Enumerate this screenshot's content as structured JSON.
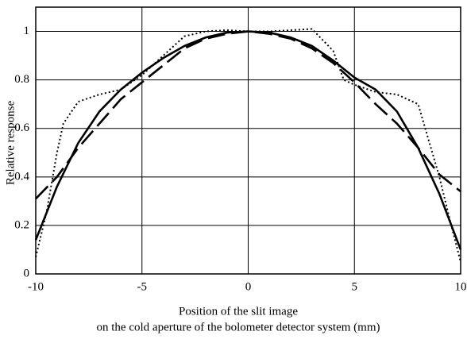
{
  "chart_data": {
    "type": "line",
    "xlabel": [
      "Position of the slit image",
      "on the cold aperture of the bolometer detector system (mm)"
    ],
    "ylabel": "Relative response",
    "xlim": [
      -10,
      10
    ],
    "ylim": [
      0,
      1.1
    ],
    "xticks": [
      -10,
      -5,
      0,
      5,
      10
    ],
    "yticks": [
      0,
      0.2,
      0.4,
      0.6,
      0.8,
      1
    ],
    "grid": true,
    "series": [
      {
        "color": "#000000",
        "dash": "solid",
        "x": [
          -10,
          -9,
          -8,
          -7,
          -6,
          -5,
          -4,
          -3,
          -2,
          -1,
          0,
          1,
          2,
          3,
          4,
          5,
          6,
          7,
          8,
          9,
          10
        ],
        "values": [
          0.14,
          0.36,
          0.54,
          0.67,
          0.76,
          0.83,
          0.89,
          0.94,
          0.975,
          0.995,
          1,
          0.995,
          0.975,
          0.94,
          0.88,
          0.81,
          0.76,
          0.67,
          0.52,
          0.33,
          0.1
        ]
      },
      {
        "color": "#000000",
        "dash": "dashed",
        "x": [
          -10,
          -9,
          -8,
          -7,
          -6,
          -5,
          -4,
          -3,
          -2,
          -1,
          0,
          1,
          2,
          3,
          4,
          5,
          6,
          7,
          8,
          9,
          10
        ],
        "values": [
          0.31,
          0.4,
          0.52,
          0.62,
          0.72,
          0.79,
          0.86,
          0.93,
          0.97,
          0.99,
          1,
          0.99,
          0.97,
          0.93,
          0.87,
          0.79,
          0.7,
          0.62,
          0.52,
          0.41,
          0.34
        ]
      },
      {
        "color": "#000000",
        "dash": "dotted",
        "x": [
          -10,
          -9.5,
          -9,
          -8.7,
          -8,
          -7,
          -6,
          -5,
          -4,
          -3,
          -2,
          -1,
          0,
          1,
          2,
          3,
          4,
          4.5,
          5,
          6,
          7,
          8,
          8.5,
          9,
          9.5,
          10
        ],
        "values": [
          0.07,
          0.25,
          0.5,
          0.62,
          0.71,
          0.74,
          0.76,
          0.82,
          0.9,
          0.98,
          1,
          1.005,
          1,
          1,
          1.005,
          1.01,
          0.92,
          0.8,
          0.78,
          0.75,
          0.74,
          0.7,
          0.55,
          0.4,
          0.22,
          0.05
        ]
      }
    ]
  }
}
